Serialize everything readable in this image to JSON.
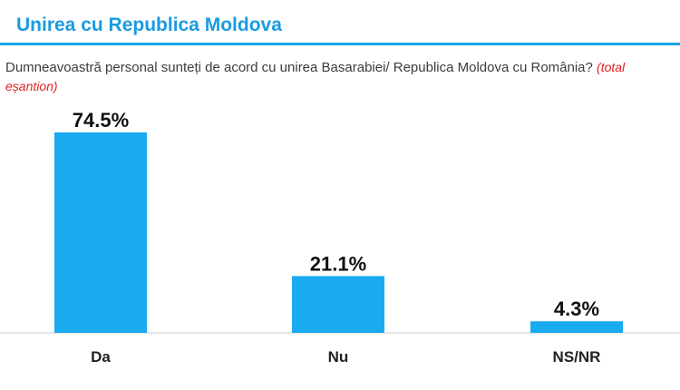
{
  "header": {
    "title": "Unirea cu Republica Moldova"
  },
  "question": {
    "text": "Dumneavoastră personal sunteți de acord cu unirea Basarabiei/ Republica Moldova cu România?",
    "note": "(total eșantion)"
  },
  "colors": {
    "accent": "#1a9be0",
    "bar": "#1aaaf0",
    "note": "#e02020"
  },
  "chart_data": {
    "type": "bar",
    "categories": [
      "Da",
      "Nu",
      "NS/NR"
    ],
    "values": [
      74.5,
      21.1,
      4.3
    ],
    "value_labels": [
      "74.5%",
      "21.1%",
      "4.3%"
    ],
    "ylim": [
      0,
      74.5
    ],
    "grid": false,
    "legend": "none"
  }
}
